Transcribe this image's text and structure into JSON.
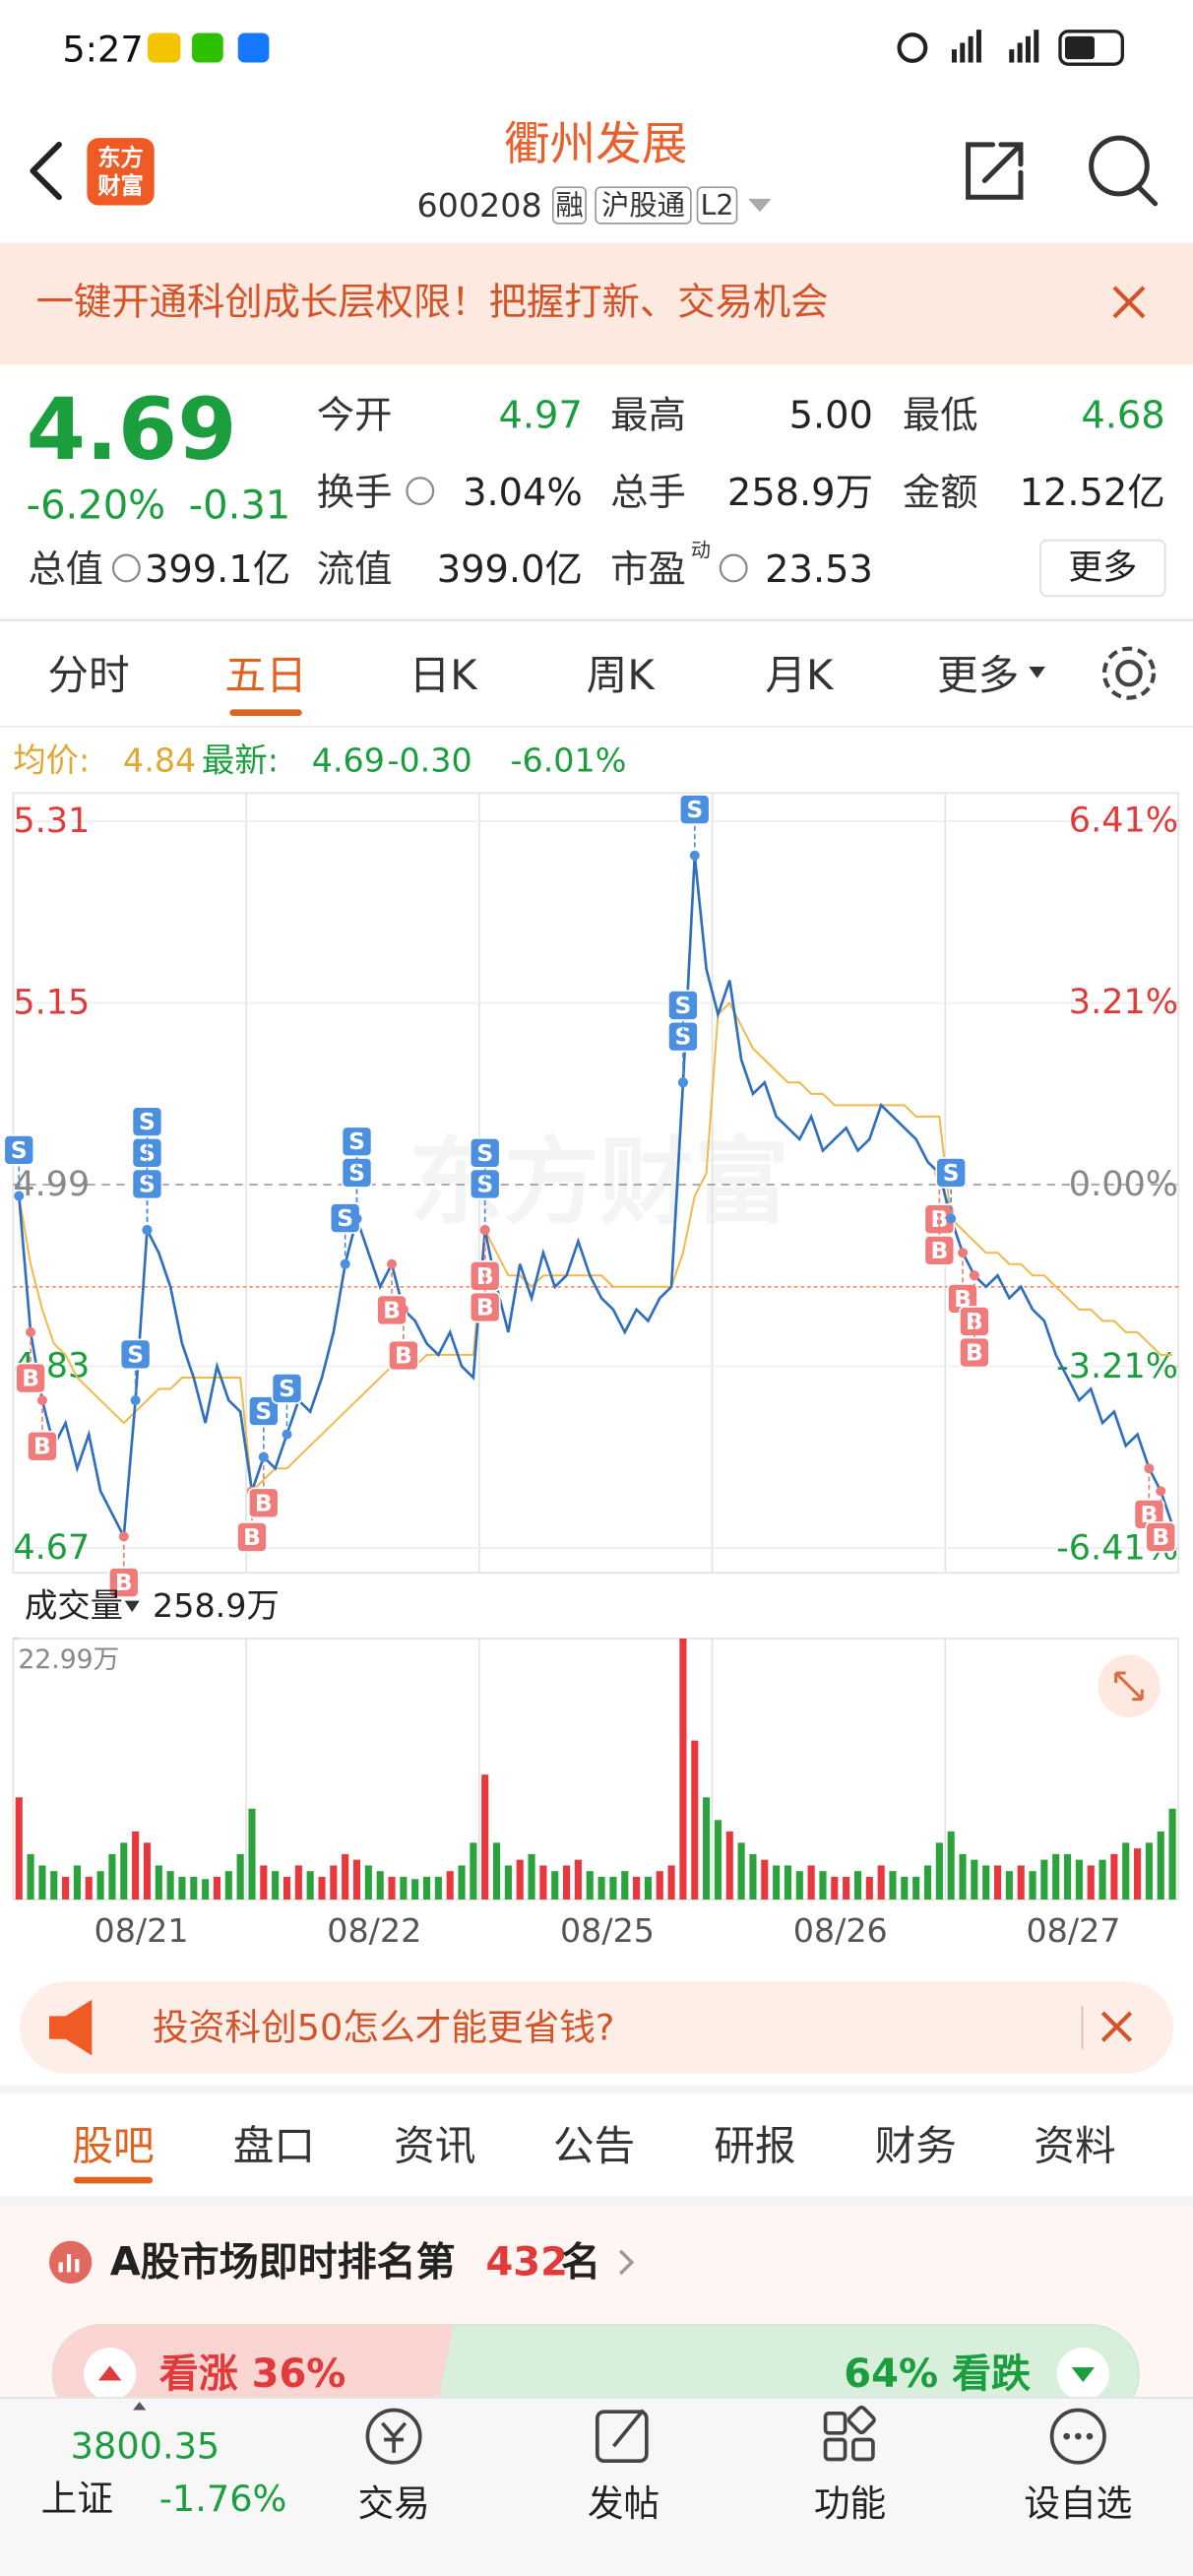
{
  "status": {
    "time": "5:27"
  },
  "header": {
    "logo": [
      "东方",
      "财富"
    ],
    "title": "衢州发展",
    "code": "600208",
    "tags": [
      "融",
      "沪股通",
      "L2"
    ]
  },
  "banner": {
    "text": "一键开通科创成长层权限！把握打新、交易机会"
  },
  "quote": {
    "price": "4.69",
    "change_pct": "-6.20%",
    "change": "-0.31",
    "more": "更多",
    "rows": [
      [
        {
          "label": "今开",
          "value": "4.97",
          "color": "#1b9e3e"
        },
        {
          "label": "最高",
          "value": "5.00",
          "color": "#222222"
        },
        {
          "label": "最低",
          "value": "4.68",
          "color": "#1b9e3e"
        }
      ],
      [
        {
          "label": "换手",
          "value": "3.04%",
          "color": "#222222"
        },
        {
          "label": "总手",
          "value": "258.9万",
          "color": "#222222"
        },
        {
          "label": "金额",
          "value": "12.52亿",
          "color": "#222222"
        }
      ],
      [
        {
          "label": "总值",
          "value": "399.1亿",
          "color": "#222222"
        },
        {
          "label": "流值",
          "value": "399.0亿",
          "color": "#222222"
        },
        {
          "label": "市盈",
          "sup": "动",
          "value": "23.53",
          "color": "#222222"
        }
      ]
    ]
  },
  "tabs": {
    "items": [
      "分时",
      "五日",
      "日K",
      "周K",
      "月K",
      "更多"
    ],
    "active": 1
  },
  "chart_data": {
    "type": "line",
    "watermark": "东方财富",
    "info": {
      "change": "-0.30",
      "change_pct": "-6.01%"
    },
    "days": [
      "08/21",
      "08/22",
      "08/25",
      "08/26",
      "08/27"
    ],
    "prev_close": 4.99,
    "ref_line": 4.9,
    "ylim": [
      4.648,
      5.335
    ],
    "yticks": [
      5.31,
      5.15,
      4.99,
      4.83,
      4.67
    ],
    "y2lim": [
      -6.84,
      6.9
    ],
    "y2ticks": [
      {
        "value": 6.41,
        "label": "6.41%"
      },
      {
        "value": 3.21,
        "label": "3.21%"
      },
      {
        "value": 0,
        "label": "0.00%"
      },
      {
        "value": -3.21,
        "label": "-3.21%"
      },
      {
        "value": -6.41,
        "label": "-6.41%"
      }
    ],
    "grid": true,
    "series": [
      {
        "name": "均价:",
        "latest": "4.84",
        "color": "#f0b94a",
        "values": [
          4.98,
          4.92,
          4.88,
          4.85,
          4.84,
          4.82,
          4.81,
          4.8,
          4.79,
          4.78,
          4.79,
          4.8,
          4.81,
          4.81,
          4.82,
          4.82,
          4.82,
          4.82,
          4.82,
          4.82,
          4.72,
          4.73,
          4.74,
          4.74,
          4.75,
          4.76,
          4.77,
          4.78,
          4.79,
          4.8,
          4.81,
          4.82,
          4.83,
          4.83,
          4.83,
          4.84,
          4.84,
          4.84,
          4.84,
          4.84,
          4.95,
          4.93,
          4.91,
          4.91,
          4.9,
          4.91,
          4.91,
          4.91,
          4.91,
          4.91,
          4.91,
          4.9,
          4.9,
          4.9,
          4.9,
          4.9,
          4.9,
          4.93,
          4.98,
          5.0,
          5.14,
          5.15,
          5.13,
          5.11,
          5.1,
          5.09,
          5.08,
          5.08,
          5.07,
          5.07,
          5.06,
          5.06,
          5.06,
          5.06,
          5.06,
          5.06,
          5.06,
          5.05,
          5.05,
          5.05,
          4.96,
          4.95,
          4.94,
          4.93,
          4.93,
          4.92,
          4.92,
          4.91,
          4.91,
          4.9,
          4.89,
          4.88,
          4.88,
          4.87,
          4.87,
          4.86,
          4.86,
          4.85,
          4.84,
          4.84
        ]
      },
      {
        "name": "最新:",
        "latest": "4.69",
        "color": "#2f6fbf",
        "values": [
          4.98,
          4.86,
          4.8,
          4.76,
          4.78,
          4.74,
          4.77,
          4.72,
          4.7,
          4.68,
          4.8,
          4.95,
          4.93,
          4.9,
          4.85,
          4.82,
          4.78,
          4.83,
          4.8,
          4.79,
          4.72,
          4.75,
          4.74,
          4.77,
          4.8,
          4.79,
          4.82,
          4.86,
          4.92,
          4.96,
          4.93,
          4.9,
          4.92,
          4.88,
          4.87,
          4.85,
          4.84,
          4.86,
          4.83,
          4.82,
          4.95,
          4.9,
          4.86,
          4.92,
          4.89,
          4.93,
          4.9,
          4.91,
          4.94,
          4.91,
          4.89,
          4.88,
          4.86,
          4.88,
          4.87,
          4.89,
          4.9,
          5.08,
          5.28,
          5.18,
          5.14,
          5.17,
          5.1,
          5.07,
          5.08,
          5.05,
          5.04,
          5.03,
          5.05,
          5.02,
          5.03,
          5.04,
          5.02,
          5.03,
          5.06,
          5.05,
          5.04,
          5.03,
          5.01,
          5.0,
          4.96,
          4.93,
          4.91,
          4.9,
          4.91,
          4.89,
          4.9,
          4.88,
          4.87,
          4.84,
          4.82,
          4.8,
          4.81,
          4.78,
          4.79,
          4.76,
          4.77,
          4.74,
          4.72,
          4.69
        ]
      }
    ],
    "signals": [
      {
        "label": "S",
        "index": 0
      },
      {
        "label": "B",
        "index": 1
      },
      {
        "label": "B",
        "index": 2
      },
      {
        "label": "B",
        "index": 9
      },
      {
        "label": "S",
        "index": 10
      },
      {
        "label": "S",
        "index": 11
      },
      {
        "label": "S",
        "index": 11
      },
      {
        "label": "S",
        "index": 11
      },
      {
        "label": "B",
        "index": 20
      },
      {
        "label": "B",
        "index": 21
      },
      {
        "label": "S",
        "index": 21
      },
      {
        "label": "S",
        "index": 23
      },
      {
        "label": "S",
        "index": 28
      },
      {
        "label": "S",
        "index": 29
      },
      {
        "label": "S",
        "index": 29
      },
      {
        "label": "B",
        "index": 32
      },
      {
        "label": "B",
        "index": 33
      },
      {
        "label": "S",
        "index": 40
      },
      {
        "label": "S",
        "index": 40
      },
      {
        "label": "B",
        "index": 40
      },
      {
        "label": "B",
        "index": 40
      },
      {
        "label": "S",
        "index": 57
      },
      {
        "label": "S",
        "index": 57
      },
      {
        "label": "S",
        "index": 58
      },
      {
        "label": "B",
        "index": 79
      },
      {
        "label": "B",
        "index": 79
      },
      {
        "label": "S",
        "index": 80
      },
      {
        "label": "B",
        "index": 81
      },
      {
        "label": "B",
        "index": 82
      },
      {
        "label": "B",
        "index": 82
      },
      {
        "label": "B",
        "index": 97
      },
      {
        "label": "B",
        "index": 98
      }
    ],
    "volume": {
      "title": "成交量",
      "total": "258.9万",
      "ylim": [
        0,
        22.99
      ],
      "yticks": [
        {
          "value": 22.99,
          "label": "22.99万"
        }
      ],
      "values": [
        9,
        4,
        3,
        2.5,
        2,
        3,
        2,
        2.5,
        4,
        5,
        6,
        5,
        3,
        2.5,
        2,
        2,
        1.8,
        2,
        2.5,
        4,
        8,
        3,
        2.5,
        2,
        3,
        2.5,
        2,
        3,
        4,
        3.5,
        3,
        2.5,
        2,
        2,
        1.8,
        2,
        2,
        2.5,
        3,
        5,
        11,
        5,
        3,
        3.5,
        4,
        3,
        2.5,
        3,
        3.5,
        2.5,
        2,
        2,
        2.5,
        2,
        2,
        2.5,
        3,
        22.99,
        14,
        9,
        7,
        6,
        5,
        4,
        3.5,
        3,
        3,
        2.5,
        3,
        2.5,
        2,
        2,
        2.5,
        2,
        3,
        2.5,
        2,
        2,
        3,
        5,
        6,
        4,
        3.5,
        3,
        3,
        2.5,
        3,
        2.5,
        3.5,
        4,
        4,
        3.5,
        3,
        3.5,
        4,
        5,
        4.5,
        5,
        6,
        8
      ]
    }
  },
  "ad": {
    "text": "投资科创50怎么才能更省钱?"
  },
  "sub_tabs": {
    "items": [
      "股吧",
      "盘口",
      "资讯",
      "公告",
      "研报",
      "财务",
      "资料"
    ],
    "active": 0
  },
  "rank": {
    "prefix": "A股市场即时排名第",
    "number": "432",
    "suffix": "名"
  },
  "sentiment": {
    "up": {
      "value": 36,
      "label": "看涨 36%"
    },
    "down": {
      "value": 64,
      "label": "64% 看跌"
    }
  },
  "nav": {
    "index_value": "3800.35",
    "index_name": "上证",
    "index_change": "-1.76%",
    "items": [
      "交易",
      "发帖",
      "功能",
      "设自选"
    ]
  }
}
